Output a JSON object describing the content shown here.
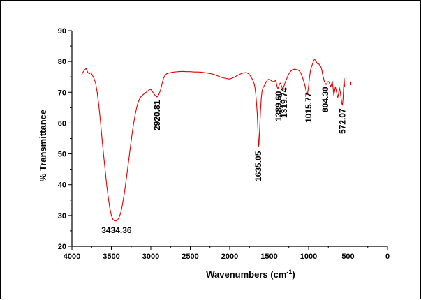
{
  "chart_data": {
    "type": "line",
    "xlabel": "Wavenumbers (cm",
    "xlabel_sup": "-1",
    "xlabel_end": ")",
    "ylabel": "% Transmittance",
    "xlim": [
      4000,
      0
    ],
    "ylim": [
      20,
      90
    ],
    "x_ticks": [
      "4000",
      "3500",
      "3000",
      "2500",
      "2000",
      "1500",
      "1000",
      "500",
      "0"
    ],
    "y_ticks": [
      "20",
      "30",
      "40",
      "50",
      "60",
      "70",
      "80",
      "90"
    ],
    "series": [
      {
        "color": "#e00000",
        "x": [
          3880,
          3860,
          3840,
          3820,
          3800,
          3780,
          3760,
          3740,
          3720,
          3700,
          3680,
          3660,
          3640,
          3620,
          3600,
          3580,
          3560,
          3540,
          3520,
          3500,
          3480,
          3460,
          3440,
          3420,
          3400,
          3380,
          3360,
          3340,
          3320,
          3300,
          3280,
          3260,
          3240,
          3220,
          3200,
          3180,
          3160,
          3140,
          3120,
          3100,
          3080,
          3060,
          3040,
          3020,
          3000,
          2980,
          2960,
          2940,
          2920,
          2900,
          2880,
          2860,
          2840,
          2820,
          2800,
          2750,
          2700,
          2650,
          2600,
          2550,
          2500,
          2450,
          2400,
          2350,
          2300,
          2250,
          2200,
          2150,
          2100,
          2050,
          2000,
          1950,
          1900,
          1850,
          1800,
          1780,
          1760,
          1740,
          1720,
          1700,
          1690,
          1680,
          1670,
          1660,
          1650,
          1640,
          1635,
          1630,
          1620,
          1610,
          1600,
          1590,
          1580,
          1570,
          1560,
          1550,
          1540,
          1520,
          1500,
          1480,
          1460,
          1440,
          1420,
          1410,
          1400,
          1390,
          1380,
          1370,
          1360,
          1350,
          1340,
          1330,
          1320,
          1310,
          1300,
          1280,
          1260,
          1240,
          1220,
          1200,
          1180,
          1160,
          1140,
          1120,
          1100,
          1080,
          1060,
          1050,
          1040,
          1030,
          1020,
          1016,
          1010,
          1000,
          990,
          980,
          970,
          960,
          950,
          940,
          930,
          920,
          910,
          900,
          890,
          880,
          870,
          860,
          850,
          840,
          830,
          820,
          810,
          804,
          800,
          790,
          780,
          770,
          760,
          750,
          740,
          730,
          720,
          710,
          700,
          690,
          680,
          670,
          660,
          650,
          640,
          630,
          620,
          610,
          600,
          590,
          580,
          572,
          565,
          560,
          555,
          550,
          545,
          540
        ],
        "y": [
          75.5,
          76.5,
          77.2,
          77.8,
          76.5,
          76,
          76.4,
          75.5,
          74.5,
          73,
          70,
          66,
          61,
          55.5,
          50,
          45,
          40,
          36,
          32.5,
          30,
          28.7,
          28.3,
          28.2,
          28.6,
          29.5,
          31,
          33.5,
          36.5,
          40,
          44,
          48,
          52,
          56,
          59.5,
          62.5,
          65,
          66.8,
          68,
          68.7,
          69.2,
          69.6,
          70,
          70.4,
          70.8,
          71,
          70.2,
          69.5,
          68.8,
          68.5,
          69.2,
          70.5,
          72.5,
          74.5,
          75.5,
          76,
          76.4,
          76.6,
          76.7,
          76.8,
          76.7,
          76.7,
          76.6,
          76.6,
          76.5,
          76.3,
          76.1,
          75.8,
          75.3,
          74.8,
          74.5,
          74.3,
          74.8,
          75.5,
          76.1,
          76.4,
          76.3,
          76,
          75.4,
          74.6,
          73.5,
          72.8,
          71.5,
          69.5,
          66.5,
          62.5,
          56,
          52.4,
          53,
          58,
          64,
          68,
          70.3,
          71.4,
          71.8,
          72.2,
          72.8,
          73.3,
          74,
          74.3,
          73.9,
          73.5,
          73.5,
          73.8,
          73.1,
          72,
          71.1,
          71.8,
          72.6,
          73,
          72.5,
          71.8,
          71.2,
          71.5,
          72.2,
          73,
          74.3,
          75.5,
          76.4,
          77,
          77.4,
          77.5,
          77.4,
          77.3,
          77,
          76.3,
          75,
          73.5,
          72.5,
          71.5,
          70.2,
          69.3,
          69.4,
          70.2,
          72,
          74.5,
          76.5,
          77.8,
          78.5,
          79.2,
          80,
          80.5,
          80.6,
          80.3,
          79.8,
          79.3,
          79.5,
          79.2,
          78.8,
          78.5,
          78,
          77,
          75.5,
          74.5,
          73.8,
          73.5,
          73,
          72.5,
          72.8,
          73.3,
          73.5,
          73.2,
          72.6,
          71.8,
          72.5,
          73.6,
          71.5,
          69,
          70.5,
          71.8,
          70.5,
          69.3,
          68.3,
          69.5,
          71.5,
          70.3,
          68.5,
          66.5,
          65.8,
          67.5,
          69.5,
          72.5,
          74.5,
          72.3,
          71.6
        ],
        "fragment": {
          "x": [
            465,
            465
          ],
          "y": [
            72.3,
            73.5
          ]
        }
      }
    ],
    "annotations": [
      {
        "text": "3434.36",
        "x": 3434.36,
        "orientation": "horizontal"
      },
      {
        "text": "2920.81",
        "x": 2920.81,
        "orientation": "vertical"
      },
      {
        "text": "1635.05",
        "x": 1635.05,
        "orientation": "vertical"
      },
      {
        "text": "1389.60",
        "x": 1389.6,
        "orientation": "vertical"
      },
      {
        "text": "1319.74",
        "x": 1319.74,
        "orientation": "vertical"
      },
      {
        "text": "1015.77",
        "x": 1015.77,
        "orientation": "vertical"
      },
      {
        "text": "804.30",
        "x": 804.3,
        "orientation": "vertical"
      },
      {
        "text": "572.07",
        "x": 572.07,
        "orientation": "vertical"
      }
    ],
    "grid": false,
    "legend": "none"
  }
}
